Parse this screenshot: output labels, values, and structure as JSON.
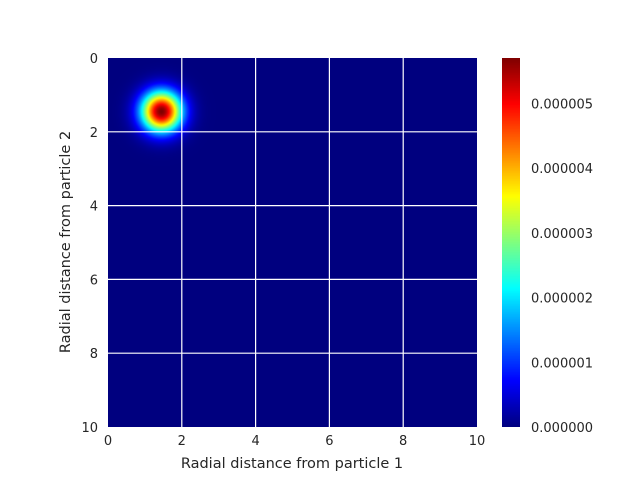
{
  "chart_data": {
    "type": "heatmap",
    "title": "",
    "xlabel": "Radial distance from particle 1",
    "ylabel": "Radial distance from particle 2",
    "xlim": [
      0,
      10
    ],
    "ylim": [
      10,
      0
    ],
    "y_axis_inverted": true,
    "x_ticks": [
      "0",
      "2",
      "4",
      "6",
      "8",
      "10"
    ],
    "y_ticks": [
      "0",
      "2",
      "4",
      "6",
      "8",
      "10"
    ],
    "grid": true,
    "grid_color": "#ffffff",
    "colormap": "jet",
    "colormap_colors": [
      "#00007f",
      "#0000ff",
      "#007fff",
      "#00ffff",
      "#7fff7f",
      "#ffff00",
      "#ff7f00",
      "#ff0000",
      "#7f0000"
    ],
    "data_model": {
      "description_type": "single gaussian peak",
      "peak_center": [
        1.45,
        1.45
      ],
      "peak_sigma": 0.38,
      "peak_value": 5.7e-06
    },
    "colorbar": {
      "min": 0,
      "max": 5.7e-06,
      "ticks": [
        {
          "value": 0,
          "label": "0.000000"
        },
        {
          "value": 1e-06,
          "label": "0.000001"
        },
        {
          "value": 2e-06,
          "label": "0.000002"
        },
        {
          "value": 3e-06,
          "label": "0.000003"
        },
        {
          "value": 4e-06,
          "label": "0.000004"
        },
        {
          "value": 5e-06,
          "label": "0.000005"
        }
      ]
    }
  }
}
